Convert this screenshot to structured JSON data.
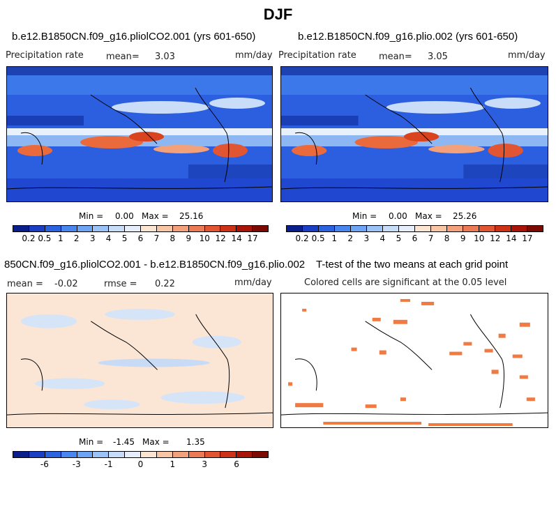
{
  "title": "DJF",
  "panels": {
    "top_left": {
      "case": "b.e12.B1850CN.f09_g16.pliolCO2.001 (yrs 601-650)",
      "variable": "Precipitation rate",
      "mean_label": "mean=",
      "mean_value": "3.03",
      "units": "mm/day",
      "min_label": "Min =",
      "min_value": "0.00",
      "max_label": "Max =",
      "max_value": "25.16"
    },
    "top_right": {
      "case": "b.e12.B1850CN.f09_g16.plio.002 (yrs 601-650)",
      "variable": "Precipitation rate",
      "mean_label": "mean=",
      "mean_value": "3.05",
      "units": "mm/day",
      "min_label": "Min =",
      "min_value": "0.00",
      "max_label": "Max =",
      "max_value": "25.26"
    },
    "bottom_left": {
      "case": "850CN.f09_g16.pliolCO2.001 - b.e12.B1850CN.f09_g16.plio.002",
      "mean_label": "mean =",
      "mean_value": "-0.02",
      "rmse_label": "rmse =",
      "rmse_value": "0.22",
      "units": "mm/day",
      "min_label": "Min =",
      "min_value": "-1.45",
      "max_label": "Max =",
      "max_value": "1.35"
    },
    "bottom_right": {
      "case": "T-test of the two means at each grid point",
      "note": "Colored cells are significant at the 0.05 level"
    }
  },
  "colorbars": {
    "precip": {
      "colors": [
        "#0a1e8c",
        "#1a3fc4",
        "#2b63e0",
        "#4a86ef",
        "#6ea4f4",
        "#9cc3f7",
        "#c6dcf9",
        "#e6eefb",
        "#fbe4d2",
        "#f8c6a4",
        "#f3a17a",
        "#ec7a55",
        "#e25532",
        "#cd3116",
        "#a81408",
        "#7e0a04"
      ],
      "ticks": [
        "0.2",
        "0.5",
        "1",
        "2",
        "3",
        "4",
        "5",
        "6",
        "7",
        "8",
        "9",
        "10",
        "12",
        "14",
        "17"
      ]
    },
    "diff": {
      "colors": [
        "#0a1e8c",
        "#1a3fc4",
        "#2b63e0",
        "#4a86ef",
        "#6ea4f4",
        "#9cc3f7",
        "#c6dcf9",
        "#e6eefb",
        "#fbe4d2",
        "#f8c6a4",
        "#f3a17a",
        "#ec7a55",
        "#e25532",
        "#cd3116",
        "#a81408",
        "#7e0a04"
      ],
      "ticks": [
        "-6",
        "-3",
        "-1",
        "0",
        "1",
        "3",
        "6"
      ],
      "tick_positions": [
        1,
        3,
        5,
        7,
        9,
        11,
        13
      ]
    }
  },
  "colors": {
    "ocean_dark": "#1638c6",
    "itcz": "#e8f0fb",
    "rain_orange": "#ea6a3c",
    "diff_bg": "#fbe6d6",
    "diff_blue": "#c8dbf6",
    "signif": "#f07a42"
  }
}
